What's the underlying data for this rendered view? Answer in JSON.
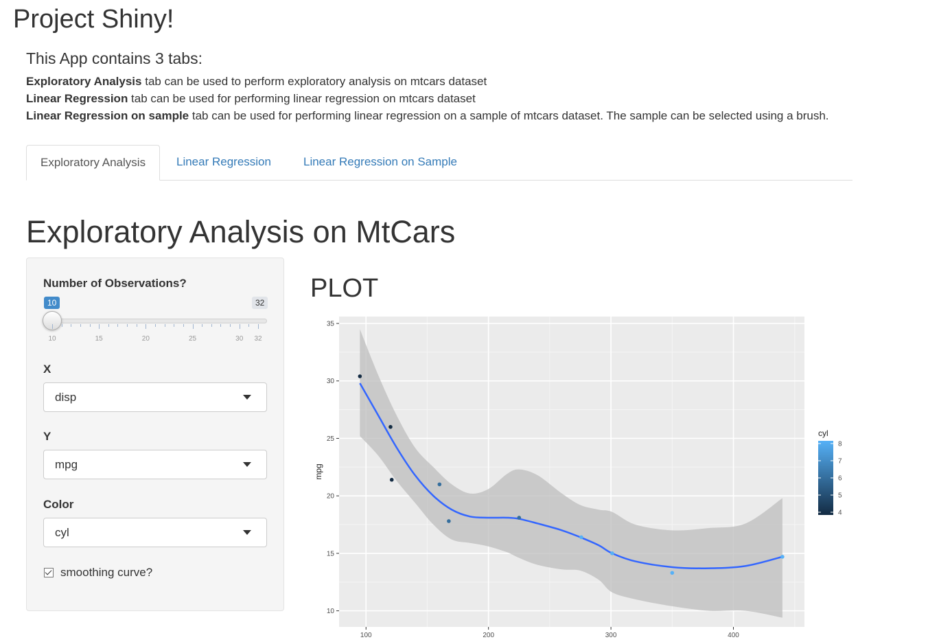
{
  "app_title": "Project Shiny!",
  "intro": {
    "heading": "This App contains 3 tabs:",
    "lines": [
      {
        "bold": "Exploratory Analysis",
        "text": " tab can be used to perform exploratory analysis on mtcars dataset"
      },
      {
        "bold": "Linear Regression",
        "text": " tab can be used for performing linear regression on mtcars dataset"
      },
      {
        "bold": "Linear Regression on sample",
        "text": " tab can be used for performing linear regression on a sample of mtcars dataset. The sample can be selected using a brush."
      }
    ]
  },
  "tabs": [
    {
      "label": "Exploratory Analysis",
      "active": true
    },
    {
      "label": "Linear Regression",
      "active": false
    },
    {
      "label": "Linear Regression on Sample",
      "active": false
    }
  ],
  "section_title": "Exploratory Analysis on MtCars",
  "sidebar": {
    "slider": {
      "label": "Number of Observations?",
      "min": 10,
      "max": 32,
      "value": 10,
      "min_label": "10",
      "max_label": "32",
      "tick_labels": [
        "10",
        "15",
        "20",
        "25",
        "30",
        "32"
      ]
    },
    "x": {
      "label": "X",
      "value": "disp"
    },
    "y": {
      "label": "Y",
      "value": "mpg"
    },
    "color": {
      "label": "Color",
      "value": "cyl"
    },
    "smooth": {
      "label": "smoothing curve?",
      "checked": true
    }
  },
  "plot_heading": "PLOT",
  "chart_data": {
    "type": "scatter",
    "title": "",
    "xlabel": "disp",
    "ylabel": "mpg",
    "xlim": [
      78,
      458
    ],
    "ylim": [
      8.6,
      35.6
    ],
    "x_ticks": [
      100,
      200,
      300,
      400
    ],
    "y_ticks": [
      10,
      15,
      20,
      25,
      30,
      35
    ],
    "grid": true,
    "points": [
      {
        "x": 95,
        "y": 30.4,
        "cyl": 4
      },
      {
        "x": 120,
        "y": 26.0,
        "cyl": 4
      },
      {
        "x": 121,
        "y": 21.4,
        "cyl": 4
      },
      {
        "x": 160,
        "y": 21.0,
        "cyl": 6
      },
      {
        "x": 167.6,
        "y": 17.8,
        "cyl": 6
      },
      {
        "x": 225,
        "y": 18.1,
        "cyl": 6
      },
      {
        "x": 275.8,
        "y": 16.4,
        "cyl": 8
      },
      {
        "x": 301,
        "y": 15.0,
        "cyl": 8
      },
      {
        "x": 350,
        "y": 13.3,
        "cyl": 8
      },
      {
        "x": 440,
        "y": 14.7,
        "cyl": 8
      }
    ],
    "smooth": {
      "method": "loess",
      "x": [
        95,
        110,
        125,
        140,
        155,
        170,
        185,
        200,
        215,
        225,
        240,
        260,
        275,
        290,
        301,
        320,
        350,
        380,
        410,
        440
      ],
      "y": [
        29.8,
        27.0,
        24.2,
        21.8,
        20.0,
        18.8,
        18.2,
        18.1,
        18.1,
        18.0,
        17.6,
        17.0,
        16.4,
        15.7,
        15.0,
        14.3,
        13.8,
        13.7,
        13.9,
        14.7
      ],
      "upper": [
        34.5,
        30.5,
        27.0,
        24.2,
        22.5,
        21.0,
        20.2,
        20.6,
        21.9,
        22.3,
        21.8,
        20.2,
        19.2,
        18.8,
        18.6,
        17.5,
        17.0,
        17.2,
        17.6,
        19.8
      ],
      "lower": [
        25.2,
        23.5,
        21.3,
        19.4,
        17.5,
        16.2,
        15.9,
        15.6,
        15.1,
        14.6,
        14.0,
        13.6,
        13.5,
        12.7,
        11.6,
        11.0,
        10.4,
        10.0,
        10.0,
        9.4
      ],
      "line_color": "#3366ff",
      "band_color": "#bdbdbd"
    },
    "legend": {
      "title": "cyl",
      "labels": [
        "8",
        "7",
        "6",
        "5",
        "4"
      ],
      "low_color": "#132b43",
      "high_color": "#56b1f7",
      "placement": "right"
    }
  }
}
